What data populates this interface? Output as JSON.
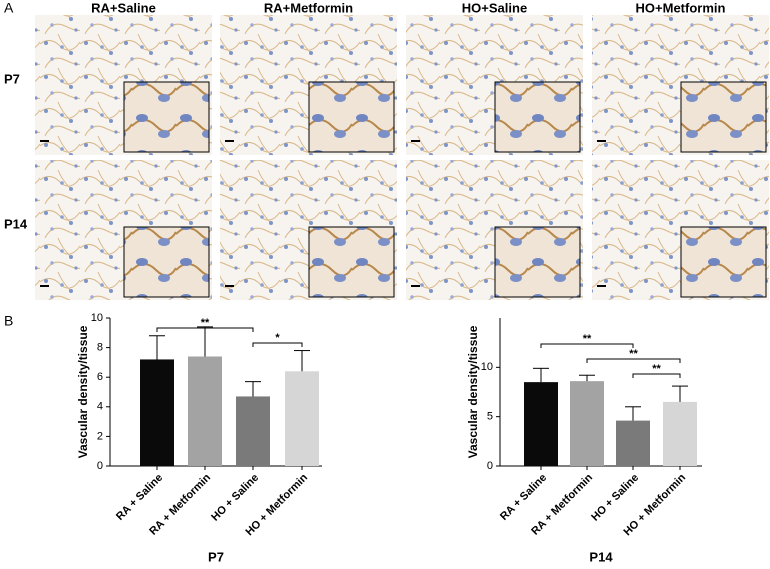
{
  "panel_labels": [
    "A",
    "B"
  ],
  "image_grid": {
    "columns": [
      "RA+Saline",
      "RA+Metformin",
      "HO+Saline",
      "HO+Metformin"
    ],
    "rows": [
      "P7",
      "P14"
    ]
  },
  "chart_data": [
    {
      "type": "bar",
      "ylabel": "Vascular density/tissue",
      "xlabel": "P7",
      "categories": [
        "RA + Saline",
        "RA + Metformin",
        "HO + Saline",
        "HO + Metformin"
      ],
      "values": [
        7.2,
        7.4,
        4.7,
        6.4
      ],
      "errors": [
        1.6,
        2.0,
        1.0,
        1.4
      ],
      "colors": [
        "#0a0a0a",
        "#a3a3a3",
        "#7a7a7a",
        "#d6d6d6"
      ],
      "ylim": [
        0,
        10
      ],
      "yticks": [
        0,
        2,
        4,
        6,
        8,
        10
      ],
      "annotations": [
        {
          "text": "**",
          "between": [
            0,
            2
          ]
        },
        {
          "text": "*",
          "between": [
            2,
            3
          ]
        }
      ]
    },
    {
      "type": "bar",
      "ylabel": "Vascular density/tissue",
      "xlabel": "P14",
      "categories": [
        "RA + Saline",
        "RA + Metformin",
        "HO + Saline",
        "HO + Metformin"
      ],
      "values": [
        8.5,
        8.6,
        4.6,
        6.5
      ],
      "errors": [
        1.4,
        0.6,
        1.4,
        1.6
      ],
      "colors": [
        "#0a0a0a",
        "#a3a3a3",
        "#7a7a7a",
        "#d6d6d6"
      ],
      "ylim": [
        0,
        15
      ],
      "yticks": [
        0,
        5,
        10
      ],
      "annotations": [
        {
          "text": "**",
          "between": [
            0,
            2
          ]
        },
        {
          "text": "**",
          "between": [
            1,
            3
          ]
        },
        {
          "text": "**",
          "between": [
            2,
            3
          ]
        }
      ]
    }
  ]
}
